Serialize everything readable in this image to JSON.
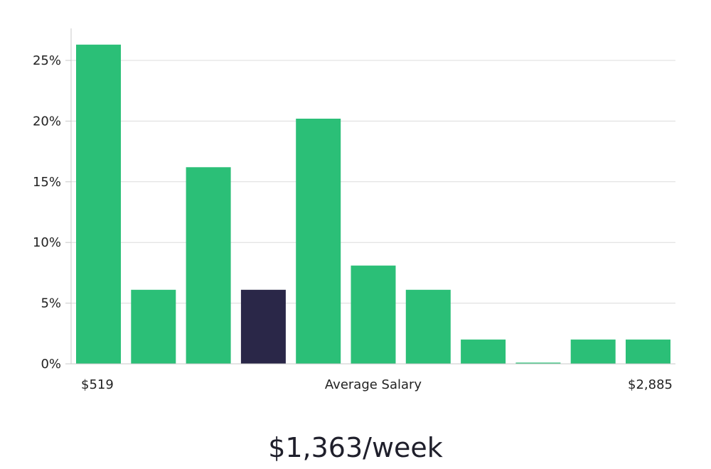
{
  "chart_data": {
    "type": "bar",
    "xlabel": "Average Salary",
    "x_min_label": "$519",
    "x_max_label": "$2,885",
    "ylabel": "",
    "yticks": [
      "0%",
      "5%",
      "10%",
      "15%",
      "20%",
      "25%"
    ],
    "ylim": [
      0,
      27.5
    ],
    "values": [
      26.3,
      6.1,
      16.2,
      6.1,
      20.2,
      8.1,
      6.1,
      2.0,
      0.1,
      2.0,
      2.0
    ],
    "highlight_index": 3,
    "grid": true
  },
  "colors": {
    "bar": "#2bbf77",
    "highlight": "#2a2748",
    "grid": "#dcdcdc",
    "axis": "#c8c8c8"
  },
  "summary": {
    "salary": "$1,363/week"
  }
}
